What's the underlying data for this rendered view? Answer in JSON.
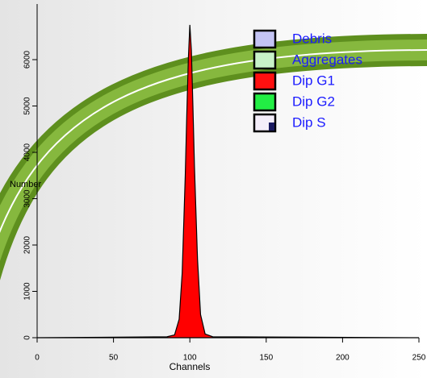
{
  "chart_data": {
    "type": "area",
    "x_label": "Channels",
    "y_label": "Number",
    "x": [
      0,
      85,
      90,
      93,
      95,
      97,
      98,
      99,
      100,
      101,
      102,
      103,
      105,
      107,
      110,
      115,
      250
    ],
    "values": [
      0,
      20,
      60,
      400,
      1400,
      3500,
      4800,
      6000,
      6750,
      6200,
      5000,
      3700,
      1700,
      500,
      80,
      20,
      0
    ],
    "color": "#ff0000",
    "xlim": [
      0,
      250
    ],
    "xticks": [
      0,
      50,
      100,
      150,
      200,
      250
    ],
    "ylim": [
      0,
      7200
    ],
    "yticks": [
      0,
      1000,
      2000,
      3000,
      4000,
      5000,
      6000
    ],
    "legend": [
      {
        "name": "Debris",
        "color": "#c4c4f4"
      },
      {
        "name": "Aggregates",
        "color": "#c8f2c8"
      },
      {
        "name": "Dip G1",
        "color": "#ff1010"
      },
      {
        "name": "Dip G2",
        "color": "#22ee44"
      },
      {
        "name": "Dip S",
        "color": "#f4eefa"
      }
    ]
  }
}
